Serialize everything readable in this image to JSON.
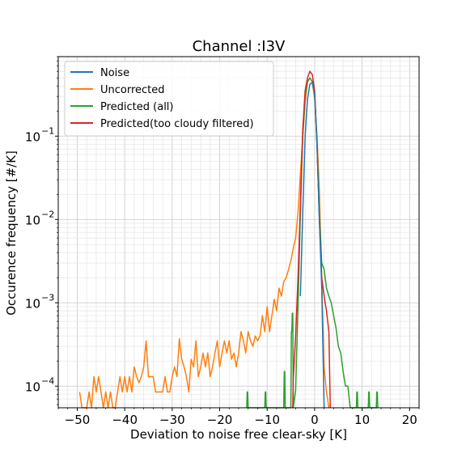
{
  "chart_data": {
    "type": "line",
    "title": "Channel :I3V",
    "xlabel": "Deviation to noise free clear-sky [K]",
    "ylabel": "Occurence frequency [#/K]",
    "xlim": [
      -54,
      22
    ],
    "ylim": [
      5.5e-05,
      0.9
    ],
    "yscale": "log",
    "grid": "major and minor",
    "legend_position": "top-left",
    "x_ticks": [
      {
        "value": -50,
        "label": "−50"
      },
      {
        "value": -40,
        "label": "−40"
      },
      {
        "value": -30,
        "label": "−30"
      },
      {
        "value": -20,
        "label": "−20"
      },
      {
        "value": -10,
        "label": "−10"
      },
      {
        "value": 0,
        "label": "0"
      },
      {
        "value": 10,
        "label": "10"
      },
      {
        "value": 20,
        "label": "20"
      }
    ],
    "y_ticks": [
      {
        "value": 0.0001,
        "base": "10",
        "exp": "−4"
      },
      {
        "value": 0.001,
        "base": "10",
        "exp": "−3"
      },
      {
        "value": 0.01,
        "base": "10",
        "exp": "−2"
      },
      {
        "value": 0.1,
        "base": "10",
        "exp": "−1"
      }
    ],
    "series": [
      {
        "name": "Uncorrected",
        "color": "#ff7f0e",
        "x": [
          -49.5,
          -49,
          -48.5,
          -48,
          -47.5,
          -47,
          -46.5,
          -46,
          -45.5,
          -45,
          -44.5,
          -44,
          -43.5,
          -43,
          -42.5,
          -42,
          -41.5,
          -41,
          -40.5,
          -40,
          -39.5,
          -39,
          -38.5,
          -38,
          -37.5,
          -37,
          -36.5,
          -36,
          -35.5,
          -35,
          -34.5,
          -34,
          -33.5,
          -33,
          -32.5,
          -32,
          -31.5,
          -31,
          -30.5,
          -30,
          -29.5,
          -29,
          -28.5,
          -28,
          -27.5,
          -27,
          -26.5,
          -26,
          -25.5,
          -25,
          -24.5,
          -24,
          -23.5,
          -23,
          -22.5,
          -22,
          -21.5,
          -21,
          -20.5,
          -20,
          -19.5,
          -19,
          -18.5,
          -18,
          -17.5,
          -17,
          -16.5,
          -16,
          -15.5,
          -15,
          -14.5,
          -14,
          -13.5,
          -13,
          -12.5,
          -12,
          -11.5,
          -11,
          -10.5,
          -10,
          -9.5,
          -9,
          -8.5,
          -8,
          -7.5,
          -7,
          -6.5,
          -6,
          -5.5,
          -5,
          -4.5,
          -4,
          -3.5,
          -3,
          -2.5,
          -2,
          -1.5,
          -1,
          -0.5,
          0,
          0.5,
          1,
          1.5,
          2,
          2.5,
          3
        ],
        "y": [
          8.5e-05,
          5.5e-05,
          5.5e-05,
          5.5e-05,
          8.5e-05,
          5.5e-05,
          0.00013,
          8.5e-05,
          0.00013,
          8.5e-05,
          5.5e-05,
          8.5e-05,
          5.5e-05,
          8.5e-05,
          5.5e-05,
          5.5e-05,
          8.5e-05,
          0.00013,
          8.5e-05,
          0.00013,
          8.5e-05,
          0.00013,
          8.5e-05,
          0.00017,
          0.00013,
          0.00011,
          0.00013,
          0.00017,
          0.00035,
          0.00013,
          0.00013,
          0.00013,
          8.5e-05,
          8.5e-05,
          8.5e-05,
          8.5e-05,
          0.00013,
          8.5e-05,
          8.5e-05,
          0.00013,
          0.00017,
          0.00013,
          0.00037,
          0.00021,
          0.00017,
          0.00013,
          8.5e-05,
          0.00021,
          0.00017,
          0.00035,
          0.00013,
          0.00017,
          0.00025,
          0.00017,
          0.00025,
          0.00013,
          0.00017,
          0.00025,
          0.00035,
          0.00017,
          0.00025,
          0.00035,
          0.00025,
          0.00035,
          0.00021,
          0.00025,
          0.00017,
          0.00025,
          0.00045,
          0.00035,
          0.00025,
          0.00045,
          0.00035,
          0.0003,
          0.0004,
          0.00035,
          0.0004,
          0.0007,
          0.00045,
          0.0009,
          0.00045,
          0.0007,
          0.0011,
          0.0008,
          0.0015,
          0.0012,
          0.0018,
          0.002,
          0.0025,
          0.0032,
          0.0045,
          0.006,
          0.012,
          0.035,
          0.1,
          0.25,
          0.45,
          0.5,
          0.45,
          0.28,
          0.1,
          0.022,
          0.0018,
          0.00017,
          8.5e-05,
          5.5e-05
        ]
      },
      {
        "name": "Predicted (all)",
        "color": "#2ca02c",
        "x": [
          -14.3,
          -14.2,
          -14.1,
          -14,
          -13.9,
          -10.5,
          -10.4,
          -10.3,
          -10.2,
          -6.5,
          -6.4,
          -6.3,
          -6.2,
          -5,
          -4.9,
          -4.8,
          -4.7,
          -4.6,
          -4.5,
          -4,
          -3.5,
          -3,
          -2.5,
          -2,
          -1.5,
          -1,
          -0.5,
          0,
          0.5,
          1,
          1.5,
          2,
          2.5,
          3,
          3.5,
          4,
          4.5,
          5,
          5.5,
          6,
          6.5,
          7,
          7.5,
          8.8,
          8.9,
          9,
          9.1,
          11.3,
          11.4,
          11.5,
          11.6,
          13,
          13.1,
          13.2,
          13.3
        ],
        "y": [
          5.5e-05,
          8.5e-05,
          8.5e-05,
          5.5e-05,
          5.5e-05,
          5.5e-05,
          8.5e-05,
          8.5e-05,
          5.5e-05,
          5.5e-05,
          0.00015,
          0.00015,
          5.5e-05,
          5.5e-05,
          0.00045,
          0.00045,
          0.00075,
          0.00075,
          5.5e-05,
          9e-05,
          0.0009,
          0.012,
          0.1,
          0.3,
          0.45,
          0.5,
          0.45,
          0.35,
          0.08,
          0.012,
          0.003,
          0.0025,
          0.0015,
          0.0012,
          0.001,
          0.0007,
          0.0005,
          0.0003,
          0.00025,
          0.00015,
          0.0001,
          0.0001,
          5.5e-05,
          5.5e-05,
          8.5e-05,
          8.5e-05,
          5.5e-05,
          5.5e-05,
          8.5e-05,
          8.5e-05,
          5.5e-05,
          5.5e-05,
          8.5e-05,
          8.5e-05,
          5.5e-05
        ]
      },
      {
        "name": "Predicted(too cloudy filtered)",
        "color": "#d62728",
        "x": [
          -4.6,
          -4.5,
          -4,
          -3.5,
          -3,
          -2.5,
          -2,
          -1.5,
          -1,
          -0.5,
          0,
          0.5,
          1,
          1.5,
          2,
          2.5,
          3,
          3.3
        ],
        "y": [
          5.5e-05,
          0.00012,
          0.0004,
          0.002,
          0.015,
          0.12,
          0.35,
          0.5,
          0.6,
          0.55,
          0.35,
          0.08,
          0.01,
          0.002,
          0.0012,
          0.0008,
          0.00045,
          5.5e-05
        ]
      },
      {
        "name": "Noise",
        "color": "#1f77b4",
        "x": [
          -3,
          -2.5,
          -2,
          -1.5,
          -1,
          -0.5,
          0,
          0.5,
          1,
          1.5,
          2
        ],
        "y": [
          0.0012,
          0.012,
          0.1,
          0.28,
          0.42,
          0.44,
          0.32,
          0.08,
          0.01,
          0.0015,
          5.5e-05
        ]
      }
    ],
    "legend": [
      "Noise",
      "Uncorrected",
      "Predicted (all)",
      "Predicted(too cloudy filtered)"
    ]
  }
}
